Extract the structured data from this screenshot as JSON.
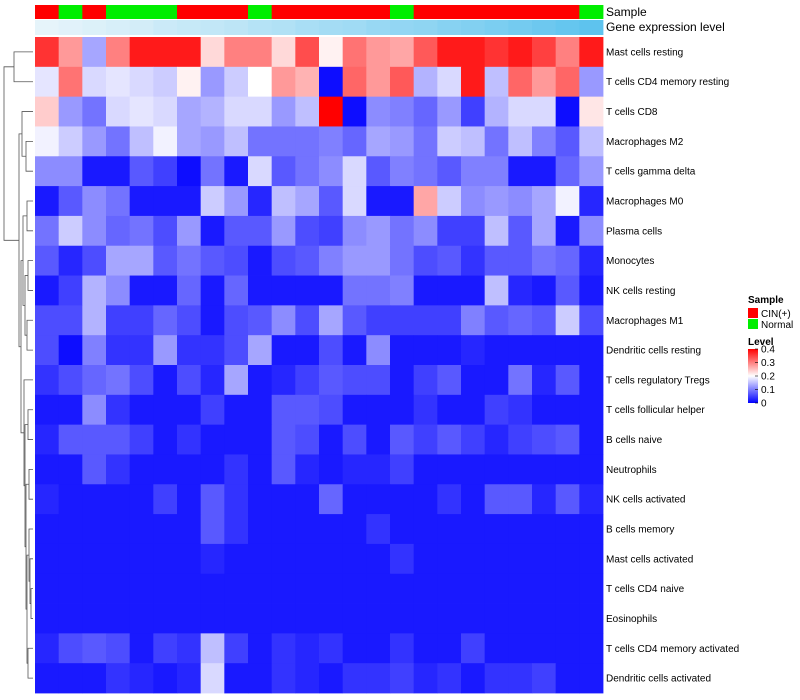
{
  "chart_data": {
    "type": "heatmap",
    "title": "",
    "rows": [
      "Mast cells resting",
      "T cells CD4 memory resting",
      "T cells CD8",
      "Macrophages M2",
      "T cells gamma delta",
      "Macrophages M0",
      "Plasma cells",
      "Monocytes",
      "NK cells resting",
      "Macrophages M1",
      "Dendritic cells resting",
      "T cells regulatory  Tregs",
      "T cells follicular helper",
      "B cells naive",
      "Neutrophils",
      "NK cells activated",
      "B cells memory",
      "Mast cells activated",
      "T cells CD4 naive",
      "Eosinophils",
      "T cells CD4 memory activated",
      "Dendritic cells activated"
    ],
    "columns": 24,
    "color_scale": {
      "min": 0,
      "mid": 0.2,
      "max": 0.4,
      "low_color": "#0000FF",
      "mid_color": "#FFFFFF",
      "high_color": "#FF0000"
    },
    "values": [
      [
        0.36,
        0.28,
        0.13,
        0.3,
        0.38,
        0.38,
        0.38,
        0.23,
        0.3,
        0.3,
        0.23,
        0.34,
        0.21,
        0.31,
        0.28,
        0.27,
        0.33,
        0.38,
        0.38,
        0.36,
        0.38,
        0.35,
        0.3,
        0.38
      ],
      [
        0.18,
        0.31,
        0.17,
        0.18,
        0.17,
        0.16,
        0.21,
        0.12,
        0.16,
        0.2,
        0.28,
        0.26,
        0.01,
        0.32,
        0.28,
        0.33,
        0.14,
        0.17,
        0.38,
        0.15,
        0.32,
        0.28,
        0.32,
        0.12
      ],
      [
        0.24,
        0.12,
        0.09,
        0.17,
        0.18,
        0.17,
        0.13,
        0.14,
        0.17,
        0.17,
        0.12,
        0.15,
        0.4,
        0.01,
        0.11,
        0.1,
        0.08,
        0.12,
        0.05,
        0.14,
        0.17,
        0.17,
        0.01,
        0.22
      ],
      [
        0.19,
        0.16,
        0.12,
        0.09,
        0.15,
        0.19,
        0.13,
        0.12,
        0.15,
        0.09,
        0.09,
        0.09,
        0.1,
        0.08,
        0.13,
        0.12,
        0.09,
        0.16,
        0.15,
        0.09,
        0.15,
        0.1,
        0.07,
        0.15
      ],
      [
        0.11,
        0.11,
        0.02,
        0.02,
        0.07,
        0.05,
        0.01,
        0.09,
        0.02,
        0.17,
        0.07,
        0.09,
        0.11,
        0.17,
        0.07,
        0.1,
        0.09,
        0.07,
        0.1,
        0.1,
        0.02,
        0.02,
        0.08,
        0.12
      ],
      [
        0.02,
        0.07,
        0.11,
        0.09,
        0.02,
        0.02,
        0.02,
        0.16,
        0.12,
        0.03,
        0.15,
        0.13,
        0.07,
        0.17,
        0.02,
        0.02,
        0.27,
        0.16,
        0.11,
        0.12,
        0.11,
        0.13,
        0.19,
        0.03
      ],
      [
        0.09,
        0.16,
        0.11,
        0.08,
        0.09,
        0.06,
        0.12,
        0.02,
        0.07,
        0.07,
        0.12,
        0.06,
        0.05,
        0.11,
        0.12,
        0.09,
        0.11,
        0.05,
        0.05,
        0.15,
        0.07,
        0.13,
        0.02,
        0.11
      ],
      [
        0.07,
        0.03,
        0.06,
        0.13,
        0.13,
        0.07,
        0.09,
        0.07,
        0.06,
        0.02,
        0.06,
        0.07,
        0.1,
        0.12,
        0.12,
        0.09,
        0.06,
        0.07,
        0.04,
        0.07,
        0.07,
        0.09,
        0.08,
        0.03
      ],
      [
        0.02,
        0.05,
        0.14,
        0.11,
        0.02,
        0.02,
        0.08,
        0.02,
        0.08,
        0.02,
        0.02,
        0.02,
        0.02,
        0.09,
        0.09,
        0.1,
        0.02,
        0.02,
        0.02,
        0.15,
        0.03,
        0.02,
        0.07,
        0.02
      ],
      [
        0.06,
        0.06,
        0.14,
        0.05,
        0.05,
        0.08,
        0.06,
        0.02,
        0.06,
        0.07,
        0.11,
        0.06,
        0.13,
        0.07,
        0.05,
        0.05,
        0.05,
        0.05,
        0.1,
        0.07,
        0.08,
        0.07,
        0.16,
        0.06
      ],
      [
        0.06,
        0.01,
        0.1,
        0.04,
        0.04,
        0.12,
        0.04,
        0.04,
        0.06,
        0.13,
        0.02,
        0.02,
        0.06,
        0.02,
        0.11,
        0.02,
        0.02,
        0.02,
        0.03,
        0.02,
        0.02,
        0.02,
        0.02,
        0.02
      ],
      [
        0.04,
        0.06,
        0.08,
        0.09,
        0.06,
        0.02,
        0.06,
        0.03,
        0.13,
        0.02,
        0.03,
        0.05,
        0.07,
        0.06,
        0.06,
        0.02,
        0.05,
        0.07,
        0.02,
        0.02,
        0.09,
        0.03,
        0.07,
        0.02
      ],
      [
        0.02,
        0.02,
        0.11,
        0.04,
        0.02,
        0.02,
        0.02,
        0.05,
        0.02,
        0.02,
        0.07,
        0.07,
        0.06,
        0.02,
        0.02,
        0.02,
        0.04,
        0.02,
        0.02,
        0.05,
        0.04,
        0.02,
        0.02,
        0.02
      ],
      [
        0.03,
        0.07,
        0.07,
        0.07,
        0.05,
        0.02,
        0.04,
        0.02,
        0.02,
        0.02,
        0.07,
        0.06,
        0.02,
        0.06,
        0.02,
        0.07,
        0.05,
        0.07,
        0.05,
        0.03,
        0.05,
        0.06,
        0.07,
        0.02
      ],
      [
        0.02,
        0.02,
        0.07,
        0.04,
        0.02,
        0.02,
        0.02,
        0.02,
        0.04,
        0.02,
        0.07,
        0.03,
        0.02,
        0.03,
        0.03,
        0.05,
        0.02,
        0.02,
        0.02,
        0.02,
        0.02,
        0.02,
        0.02,
        0.02
      ],
      [
        0.03,
        0.02,
        0.02,
        0.02,
        0.02,
        0.05,
        0.02,
        0.07,
        0.04,
        0.02,
        0.02,
        0.02,
        0.08,
        0.02,
        0.02,
        0.02,
        0.02,
        0.04,
        0.02,
        0.07,
        0.07,
        0.03,
        0.07,
        0.03
      ],
      [
        0.02,
        0.02,
        0.02,
        0.02,
        0.02,
        0.02,
        0.02,
        0.07,
        0.04,
        0.02,
        0.02,
        0.02,
        0.02,
        0.02,
        0.04,
        0.02,
        0.02,
        0.02,
        0.02,
        0.02,
        0.02,
        0.02,
        0.02,
        0.02
      ],
      [
        0.02,
        0.02,
        0.02,
        0.02,
        0.02,
        0.02,
        0.02,
        0.03,
        0.02,
        0.02,
        0.02,
        0.02,
        0.02,
        0.02,
        0.02,
        0.04,
        0.02,
        0.02,
        0.02,
        0.02,
        0.02,
        0.02,
        0.02,
        0.02
      ],
      [
        0.02,
        0.02,
        0.02,
        0.02,
        0.02,
        0.02,
        0.02,
        0.02,
        0.02,
        0.02,
        0.02,
        0.02,
        0.02,
        0.02,
        0.02,
        0.02,
        0.02,
        0.02,
        0.02,
        0.02,
        0.02,
        0.02,
        0.02,
        0.02
      ],
      [
        0.02,
        0.02,
        0.02,
        0.02,
        0.02,
        0.02,
        0.02,
        0.02,
        0.02,
        0.02,
        0.02,
        0.02,
        0.02,
        0.02,
        0.02,
        0.02,
        0.02,
        0.02,
        0.02,
        0.02,
        0.02,
        0.02,
        0.02,
        0.02
      ],
      [
        0.03,
        0.06,
        0.07,
        0.06,
        0.02,
        0.05,
        0.04,
        0.15,
        0.05,
        0.02,
        0.04,
        0.03,
        0.04,
        0.02,
        0.02,
        0.04,
        0.02,
        0.02,
        0.05,
        0.02,
        0.02,
        0.02,
        0.02,
        0.02
      ],
      [
        0.02,
        0.02,
        0.02,
        0.04,
        0.03,
        0.02,
        0.03,
        0.17,
        0.02,
        0.02,
        0.04,
        0.03,
        0.02,
        0.04,
        0.04,
        0.05,
        0.03,
        0.04,
        0.02,
        0.04,
        0.04,
        0.05,
        0.02,
        0.02
      ]
    ],
    "annotations": {
      "sample": {
        "label": "Sample",
        "values": [
          "CIN(+)",
          "Normal",
          "CIN(+)",
          "Normal",
          "Normal",
          "Normal",
          "CIN(+)",
          "CIN(+)",
          "CIN(+)",
          "Normal",
          "CIN(+)",
          "CIN(+)",
          "CIN(+)",
          "CIN(+)",
          "CIN(+)",
          "Normal",
          "CIN(+)",
          "CIN(+)",
          "CIN(+)",
          "CIN(+)",
          "CIN(+)",
          "CIN(+)",
          "CIN(+)",
          "Normal"
        ]
      },
      "gene_expression_level": {
        "label": "Gene expression level",
        "values": [
          0.02,
          0.04,
          0.06,
          0.08,
          0.1,
          0.13,
          0.15,
          0.17,
          0.19,
          0.22,
          0.24,
          0.27,
          0.29,
          0.31,
          0.34,
          0.36,
          0.38,
          0.41,
          0.43,
          0.46,
          0.49,
          0.52,
          0.55,
          0.58
        ]
      }
    },
    "legend": {
      "sample": {
        "title": "Sample",
        "entries": [
          {
            "label": "CIN(+)",
            "color": "#FF0000"
          },
          {
            "label": "Normal",
            "color": "#00EE00"
          }
        ]
      },
      "level": {
        "title": "Level",
        "ticks": [
          {
            "value": 0.4,
            "label": "0.4"
          },
          {
            "value": 0.3,
            "label": "0.3"
          },
          {
            "value": 0.2,
            "label": "0.2"
          },
          {
            "value": 0.1,
            "label": "0.1"
          },
          {
            "value": 0,
            "label": "0"
          }
        ]
      }
    },
    "annotation_colors": {
      "CIN(+)": "#FF0000",
      "Normal": "#00EE00",
      "gene_level_low": "#E6F4FA",
      "gene_level_high": "#5EC3EE"
    }
  }
}
